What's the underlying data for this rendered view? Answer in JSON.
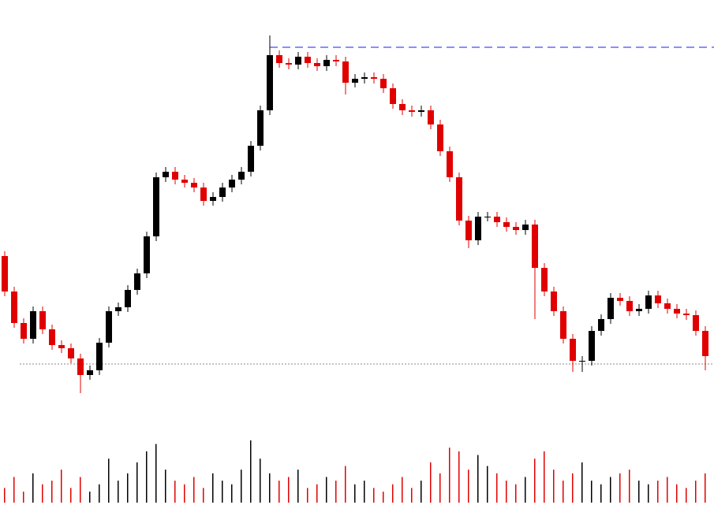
{
  "chart_data": {
    "type": "candlestick",
    "open": [
      295,
      250,
      210,
      190,
      225,
      202,
      182,
      178,
      165,
      144,
      150,
      185,
      225,
      230,
      252,
      273,
      320,
      395,
      402,
      392,
      388,
      382,
      365,
      370,
      382,
      392,
      402,
      435,
      480,
      550,
      540,
      538,
      548,
      540,
      536,
      544,
      542,
      515,
      520,
      522,
      520,
      508,
      488,
      480,
      478,
      480,
      462,
      428,
      395,
      340,
      315,
      345,
      345,
      338,
      332,
      328,
      335,
      280,
      250,
      225,
      190,
      162,
      162,
      200,
      215,
      242,
      238,
      225,
      228,
      245,
      235,
      228,
      222,
      220,
      200
    ],
    "high": [
      301,
      256,
      216,
      231,
      231,
      208,
      188,
      184,
      171,
      156,
      191,
      231,
      236,
      258,
      279,
      326,
      401,
      408,
      408,
      398,
      394,
      388,
      376,
      388,
      398,
      408,
      441,
      486,
      575,
      556,
      546,
      554,
      554,
      546,
      550,
      550,
      548,
      526,
      528,
      528,
      526,
      514,
      494,
      486,
      486,
      486,
      468,
      434,
      401,
      346,
      351,
      351,
      351,
      344,
      338,
      341,
      341,
      286,
      256,
      231,
      196,
      168,
      206,
      221,
      248,
      248,
      244,
      234,
      251,
      251,
      241,
      234,
      228,
      226,
      206
    ],
    "low": [
      244,
      204,
      184,
      184,
      196,
      176,
      172,
      159,
      121,
      138,
      144,
      179,
      219,
      224,
      246,
      267,
      314,
      389,
      386,
      382,
      376,
      359,
      359,
      364,
      376,
      386,
      396,
      429,
      474,
      534,
      532,
      532,
      534,
      530,
      530,
      536,
      500,
      509,
      514,
      514,
      502,
      482,
      474,
      472,
      472,
      456,
      422,
      389,
      334,
      305,
      309,
      339,
      332,
      326,
      322,
      322,
      215,
      244,
      219,
      184,
      148,
      148,
      156,
      194,
      209,
      232,
      219,
      219,
      222,
      229,
      222,
      216,
      214,
      194,
      150
    ],
    "close": [
      250,
      210,
      190,
      225,
      202,
      182,
      178,
      165,
      144,
      150,
      185,
      225,
      230,
      252,
      273,
      320,
      395,
      402,
      392,
      388,
      382,
      365,
      370,
      382,
      392,
      402,
      435,
      480,
      550,
      540,
      538,
      548,
      540,
      536,
      544,
      542,
      515,
      520,
      522,
      520,
      508,
      488,
      480,
      478,
      480,
      462,
      428,
      395,
      340,
      315,
      345,
      345,
      338,
      332,
      328,
      335,
      280,
      250,
      225,
      190,
      162,
      162,
      200,
      215,
      242,
      238,
      225,
      228,
      245,
      235,
      228,
      222,
      220,
      200,
      168
    ],
    "volume": [
      20,
      35,
      15,
      40,
      25,
      30,
      45,
      20,
      35,
      15,
      25,
      60,
      30,
      40,
      55,
      70,
      80,
      45,
      30,
      25,
      35,
      20,
      40,
      30,
      25,
      45,
      85,
      60,
      40,
      30,
      35,
      45,
      20,
      25,
      35,
      30,
      50,
      25,
      30,
      20,
      15,
      25,
      35,
      20,
      30,
      55,
      40,
      75,
      70,
      45,
      65,
      50,
      40,
      30,
      25,
      35,
      60,
      70,
      45,
      30,
      40,
      55,
      30,
      25,
      35,
      40,
      45,
      30,
      25,
      30,
      35,
      25,
      20,
      30,
      40
    ],
    "up_color": "#000000",
    "down_color": "#e00000",
    "ylim": [
      100,
      620
    ],
    "volume_lim": [
      0,
      100
    ],
    "hlines": [
      {
        "value": 560,
        "color": "#1a1aff",
        "style": "dashed"
      },
      {
        "value": 158,
        "color": "#888888",
        "style": "dotted"
      }
    ]
  }
}
